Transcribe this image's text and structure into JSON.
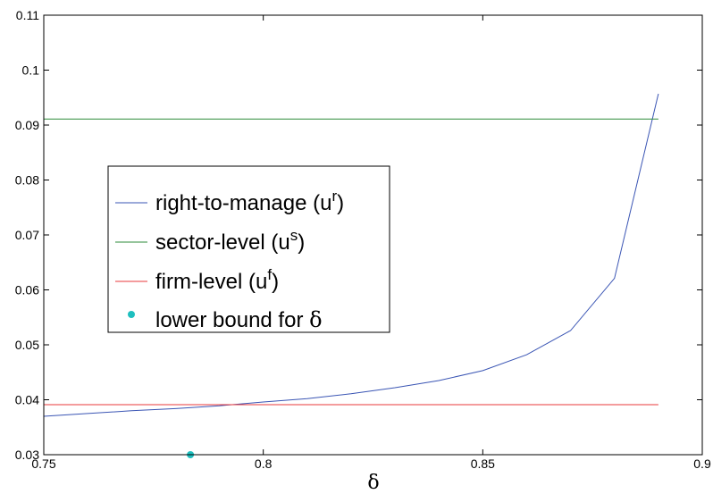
{
  "chart_data": {
    "type": "line",
    "title": "",
    "xlabel": "δ",
    "ylabel": "",
    "xlim": [
      0.75,
      0.9
    ],
    "ylim": [
      0.03,
      0.11
    ],
    "x_ticks": [
      "0.75",
      "0.8",
      "0.85",
      "0.9"
    ],
    "x_tick_values": [
      0.75,
      0.8,
      0.85,
      0.9
    ],
    "y_ticks": [
      "0.03",
      "0.04",
      "0.05",
      "0.06",
      "0.07",
      "0.08",
      "0.09",
      "0.1",
      "0.11"
    ],
    "y_tick_values": [
      0.03,
      0.04,
      0.05,
      0.06,
      0.07,
      0.08,
      0.09,
      0.1,
      0.11
    ],
    "grid": false,
    "legend_position": "center-left",
    "series": [
      {
        "name": "right-to-manage (u^r)",
        "label_main": "right-to-manage (u",
        "label_sup": "r",
        "label_tail": ")",
        "color": "#3a55b4",
        "kind": "line",
        "x": [
          0.75,
          0.76,
          0.77,
          0.78,
          0.79,
          0.8,
          0.81,
          0.82,
          0.83,
          0.84,
          0.85,
          0.86,
          0.87,
          0.88,
          0.89
        ],
        "y": [
          0.037,
          0.0375,
          0.038,
          0.0384,
          0.0389,
          0.0396,
          0.0402,
          0.0411,
          0.0422,
          0.0435,
          0.0453,
          0.0482,
          0.0526,
          0.0621,
          0.0957
        ]
      },
      {
        "name": "sector-level (u^s)",
        "label_main": "sector-level (u",
        "label_sup": "s",
        "label_tail": ")",
        "color": "#2e8b3a",
        "kind": "line",
        "x": [
          0.75,
          0.89
        ],
        "y": [
          0.0911,
          0.0911
        ]
      },
      {
        "name": "firm-level (u^f)",
        "label_main": "firm-level (u",
        "label_sup": "f",
        "label_tail": ")",
        "color": "#e8383b",
        "kind": "line",
        "x": [
          0.75,
          0.89
        ],
        "y": [
          0.0391,
          0.0391
        ]
      },
      {
        "name": "lower bound for δ",
        "label_main": "lower bound for ",
        "label_sup": "",
        "label_tail": "",
        "label_symbol": "δ",
        "color": "#1fbfbf",
        "kind": "point",
        "x": [
          0.7834
        ],
        "y": [
          0.03
        ]
      }
    ]
  }
}
